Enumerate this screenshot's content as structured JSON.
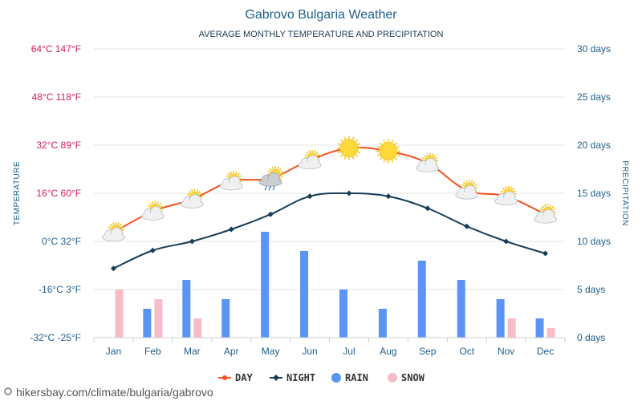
{
  "chart_data": {
    "type": "line+bar",
    "title": "Gabrovo Bulgaria Weather",
    "subtitle": "AVERAGE MONTHLY TEMPERATURE AND PRECIPITATION",
    "ylabel_left": "TEMPERATURE",
    "ylabel_right": "PRECIPITATION",
    "categories": [
      "Jan",
      "Feb",
      "Mar",
      "Apr",
      "May",
      "Jun",
      "Jul",
      "Aug",
      "Sep",
      "Oct",
      "Nov",
      "Dec"
    ],
    "left_axis": {
      "range_c": [
        -32,
        64
      ],
      "ticks_c": [
        64,
        48,
        32,
        16,
        0,
        -16,
        -32
      ],
      "tick_labels": [
        "64°C 147°F",
        "48°C 118°F",
        "32°C 89°F",
        "16°C 60°F",
        "0°C 32°F",
        "-16°C 3°F",
        "-32°C -25°F"
      ],
      "tick_colors": [
        "#d81b60",
        "#d81b60",
        "#d81b60",
        "#d81b60",
        "#1f5f8b",
        "#1f5f8b",
        "#1f5f8b"
      ]
    },
    "right_axis": {
      "range_days": [
        0,
        30
      ],
      "ticks_days": [
        30,
        25,
        20,
        15,
        10,
        5,
        0
      ],
      "tick_labels": [
        "30 days",
        "25 days",
        "20 days",
        "15 days",
        "10 days",
        "5 days",
        "0 days"
      ]
    },
    "series": [
      {
        "name": "DAY",
        "kind": "line",
        "axis": "left",
        "color": "#f4511e",
        "values": [
          3,
          10,
          14,
          20,
          21,
          27,
          31,
          30,
          26,
          17,
          15,
          9
        ]
      },
      {
        "name": "NIGHT",
        "kind": "line",
        "axis": "left",
        "color": "#153d56",
        "values": [
          -9,
          -3,
          0,
          4,
          9,
          15,
          16,
          15,
          11,
          5,
          0,
          -4
        ]
      },
      {
        "name": "RAIN",
        "kind": "bar",
        "axis": "right",
        "color": "#5a95f5",
        "values": [
          0,
          3,
          6,
          4,
          11,
          9,
          5,
          3,
          8,
          6,
          4,
          2
        ]
      },
      {
        "name": "SNOW",
        "kind": "bar",
        "axis": "right",
        "color": "#f8bcc8",
        "values": [
          5,
          4,
          2,
          0,
          0,
          0,
          0,
          0,
          0,
          0,
          2,
          1
        ]
      }
    ],
    "weather_icons": [
      "partly-cloudy-icon",
      "partly-cloudy-icon",
      "partly-cloudy-icon",
      "partly-cloudy-icon",
      "rain-shower-icon",
      "partly-cloudy-icon",
      "sun-icon",
      "sun-icon",
      "partly-cloudy-icon",
      "partly-cloudy-icon",
      "partly-cloudy-icon",
      "partly-cloudy-icon"
    ],
    "legend": [
      {
        "label": "DAY",
        "color": "#f4511e",
        "marker": "line-dot"
      },
      {
        "label": "NIGHT",
        "color": "#153d56",
        "marker": "line-diamond"
      },
      {
        "label": "RAIN",
        "color": "#5a95f5",
        "marker": "circle"
      },
      {
        "label": "SNOW",
        "color": "#f8bcc8",
        "marker": "circle"
      }
    ],
    "legend_position": "bottom-center",
    "grid": true
  },
  "footer": {
    "source": "hikersbay.com/climate/bulgaria/gabrovo"
  }
}
